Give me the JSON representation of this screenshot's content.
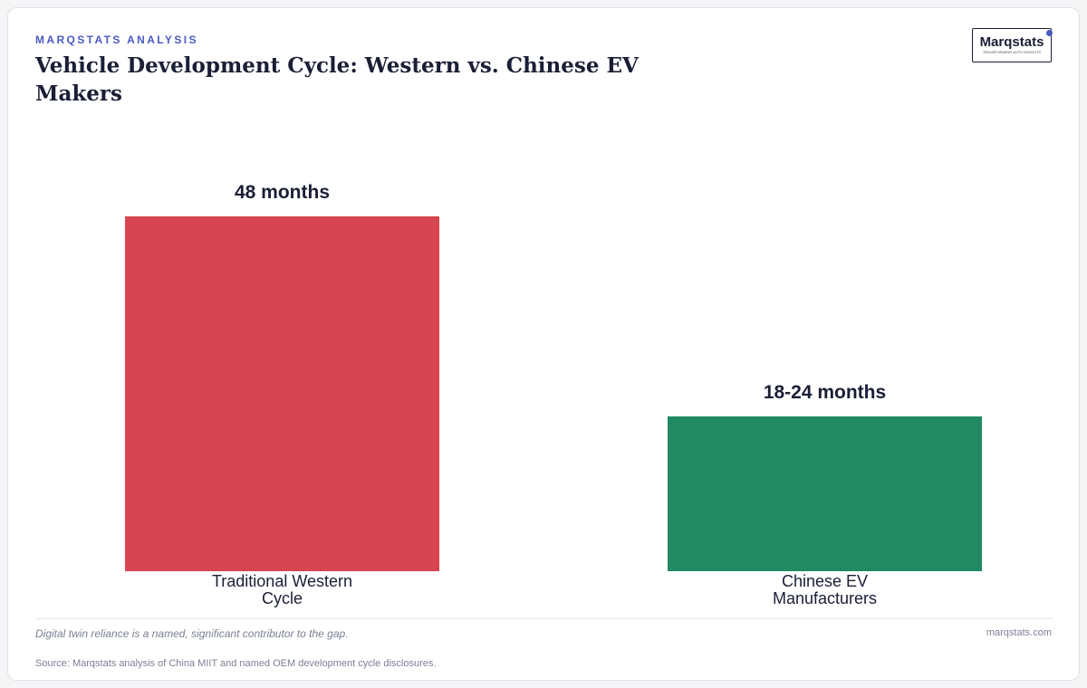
{
  "header": {
    "kicker": "MARQSTATS ANALYSIS",
    "logo": "Marqstats",
    "logo_tagline": "TRANSFORMING AUTO INSIGHTS"
  },
  "chart_data": {
    "type": "bar",
    "title": "Vehicle Development Cycle: Western vs. Chinese EV Makers",
    "categories": [
      "Traditional Western Cycle",
      "Chinese EV Manufacturers"
    ],
    "values": [
      48,
      21
    ],
    "value_labels": [
      "48 months",
      "18-24 months"
    ],
    "colors": [
      "#d64550",
      "#218a62"
    ]
  },
  "footer": {
    "note": "Digital twin reliance is a named, significant contributor to the gap.",
    "site": "marqstats.com",
    "source": "Source: Marqstats analysis of China MIIT and named OEM development cycle disclosures."
  }
}
